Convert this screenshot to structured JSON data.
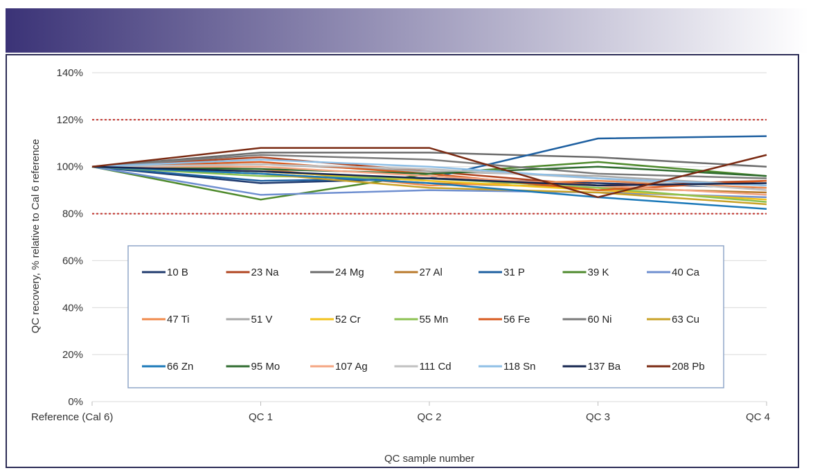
{
  "colors": {
    "banner_start": "#3b3377",
    "banner_end": "#ffffff",
    "frame": "#2b2b55",
    "limit_line": "#c0302a",
    "grid": "#d9d9d9",
    "legend_border": "#8fa6c8"
  },
  "chart_data": {
    "type": "line",
    "title": "",
    "xlabel": "QC sample number",
    "ylabel": "QC recovery, % relative to Cal 6 reference",
    "categories": [
      "Reference (Cal 6)",
      "QC 1",
      "QC 2",
      "QC 3",
      "QC 4"
    ],
    "ylim": [
      0,
      140
    ],
    "yticks": [
      0,
      20,
      40,
      60,
      80,
      100,
      120,
      140
    ],
    "ytick_labels": [
      "0%",
      "20%",
      "40%",
      "60%",
      "80%",
      "100%",
      "120%",
      "140%"
    ],
    "limits": [
      80,
      120
    ],
    "legend_position": "center",
    "series": [
      {
        "name": "10 B",
        "color": "#1f3a6e",
        "values": [
          100,
          93,
          95,
          93,
          91
        ]
      },
      {
        "name": "23 Na",
        "color": "#b0441f",
        "values": [
          100,
          104,
          98,
          92,
          94
        ]
      },
      {
        "name": "24 Mg",
        "color": "#6b6b6b",
        "values": [
          100,
          106,
          106,
          104,
          100
        ]
      },
      {
        "name": "27 Al",
        "color": "#b8782a",
        "values": [
          100,
          97,
          93,
          91,
          89
        ]
      },
      {
        "name": "31 P",
        "color": "#1d5fa0",
        "values": [
          100,
          94,
          95,
          112,
          113
        ]
      },
      {
        "name": "39 K",
        "color": "#4e8a2c",
        "values": [
          100,
          86,
          97,
          102,
          96
        ]
      },
      {
        "name": "40 Ca",
        "color": "#6f8fd0",
        "values": [
          100,
          88,
          90,
          89,
          87
        ]
      },
      {
        "name": "47 Ti",
        "color": "#f08a4b",
        "values": [
          100,
          99,
          92,
          94,
          91
        ]
      },
      {
        "name": "51 V",
        "color": "#a9a9a9",
        "values": [
          100,
          101,
          98,
          96,
          92
        ]
      },
      {
        "name": "52 Cr",
        "color": "#f2c21b",
        "values": [
          100,
          98,
          94,
          90,
          86
        ]
      },
      {
        "name": "55 Mn",
        "color": "#8cc152",
        "values": [
          100,
          96,
          95,
          91,
          85
        ]
      },
      {
        "name": "56 Fe",
        "color": "#d85a1f",
        "values": [
          100,
          102,
          97,
          90,
          94
        ]
      },
      {
        "name": "60 Ni",
        "color": "#7a7a7a",
        "values": [
          100,
          105,
          103,
          97,
          95
        ]
      },
      {
        "name": "63 Cu",
        "color": "#c9a227",
        "values": [
          100,
          97,
          91,
          89,
          84
        ]
      },
      {
        "name": "66 Zn",
        "color": "#1a78b8",
        "values": [
          100,
          97,
          93,
          87,
          82
        ]
      },
      {
        "name": "95 Mo",
        "color": "#2f6b2f",
        "values": [
          100,
          99,
          97,
          100,
          96
        ]
      },
      {
        "name": "107 Ag",
        "color": "#f4a582",
        "values": [
          100,
          100,
          96,
          92,
          88
        ]
      },
      {
        "name": "111 Cd",
        "color": "#c0c0c0",
        "values": [
          100,
          101,
          99,
          95,
          90
        ]
      },
      {
        "name": "118 Sn",
        "color": "#8fbfe6",
        "values": [
          100,
          103,
          100,
          95,
          92
        ]
      },
      {
        "name": "137 Ba",
        "color": "#14254f",
        "values": [
          100,
          98,
          95,
          92,
          93
        ]
      },
      {
        "name": "208 Pb",
        "color": "#7a2a12",
        "values": [
          100,
          108,
          108,
          87,
          105
        ]
      }
    ]
  }
}
